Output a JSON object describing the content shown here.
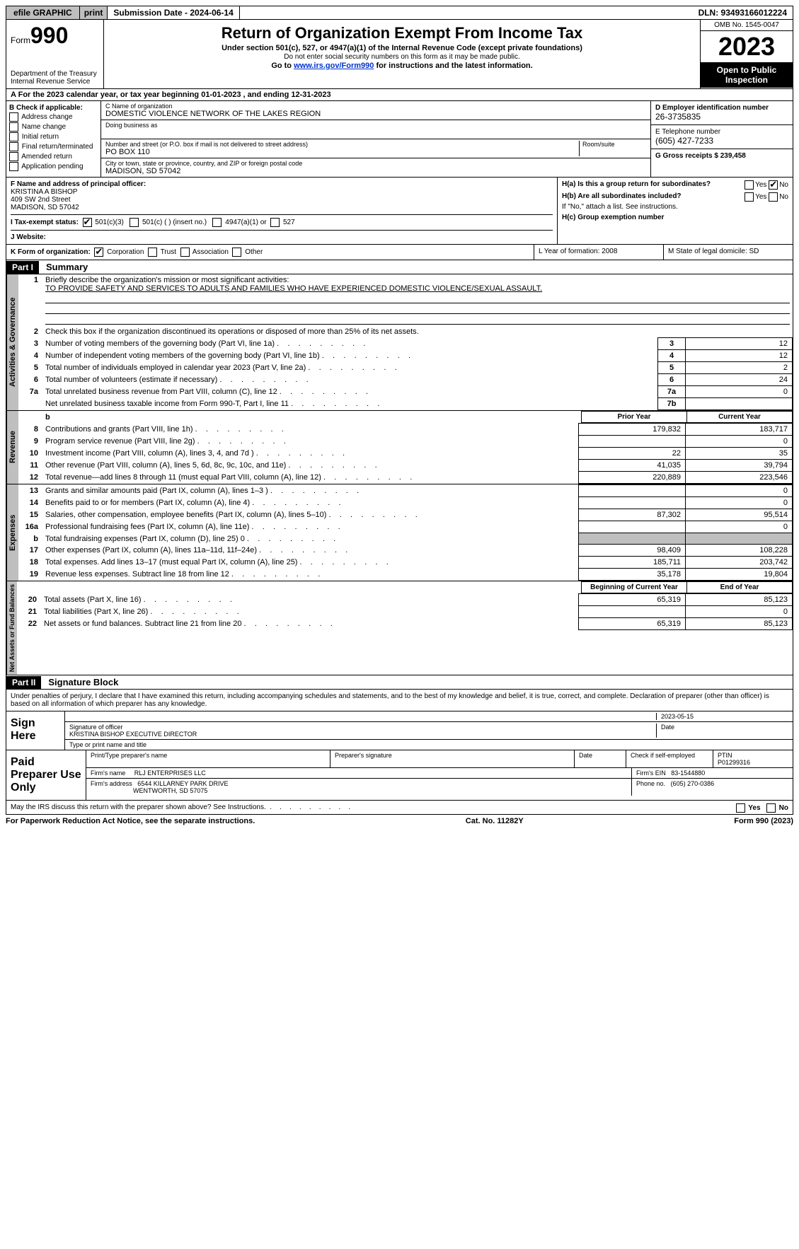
{
  "topbar": {
    "efile": "efile GRAPHIC",
    "print": "print",
    "subdate_label": "Submission Date - 2024-06-14",
    "dln": "DLN: 93493166012224"
  },
  "header": {
    "form_prefix": "Form",
    "form_num": "990",
    "dept": "Department of the Treasury\nInternal Revenue Service",
    "title": "Return of Organization Exempt From Income Tax",
    "sub1": "Under section 501(c), 527, or 4947(a)(1) of the Internal Revenue Code (except private foundations)",
    "sub2": "Do not enter social security numbers on this form as it may be made public.",
    "sub3_pre": "Go to ",
    "sub3_link": "www.irs.gov/Form990",
    "sub3_post": " for instructions and the latest information.",
    "omb": "OMB No. 1545-0047",
    "year": "2023",
    "open": "Open to Public Inspection"
  },
  "rowA": "For the 2023 calendar year, or tax year beginning 01-01-2023   , and ending 12-31-2023",
  "boxB": {
    "label": "B Check if applicable:",
    "items": [
      "Address change",
      "Name change",
      "Initial return",
      "Final return/terminated",
      "Amended return",
      "Application pending"
    ]
  },
  "boxC": {
    "name_label": "C Name of organization",
    "name": "DOMESTIC VIOLENCE NETWORK OF THE LAKES REGION",
    "dba_label": "Doing business as",
    "addr_label": "Number and street (or P.O. box if mail is not delivered to street address)",
    "room_label": "Room/suite",
    "addr": "PO BOX 110",
    "city_label": "City or town, state or province, country, and ZIP or foreign postal code",
    "city": "MADISON, SD  57042"
  },
  "boxD": {
    "label": "D Employer identification number",
    "val": "26-3735835"
  },
  "boxE": {
    "label": "E Telephone number",
    "val": "(605) 427-7233"
  },
  "boxG": {
    "label": "G Gross receipts $ 239,458"
  },
  "boxF": {
    "label": "F  Name and address of principal officer:",
    "l1": "KRISTINA A BISHOP",
    "l2": "409 SW 2nd Street",
    "l3": "MADISON, SD  57042"
  },
  "boxH": {
    "a": "H(a)  Is this a group return for subordinates?",
    "b": "H(b)  Are all subordinates included?",
    "bno": "If \"No,\" attach a list. See instructions.",
    "c": "H(c)  Group exemption number"
  },
  "rowI": {
    "label": "I   Tax-exempt status:",
    "o1": "501(c)(3)",
    "o2": "501(c) (  ) (insert no.)",
    "o3": "4947(a)(1) or",
    "o4": "527"
  },
  "rowJ": "J   Website:",
  "rowK": {
    "label": "K Form of organization:",
    "opts": [
      "Corporation",
      "Trust",
      "Association",
      "Other"
    ]
  },
  "rowL": "L Year of formation: 2008",
  "rowM": "M State of legal domicile: SD",
  "part1": {
    "label": "Part I",
    "title": "Summary"
  },
  "summary": {
    "l1": "Briefly describe the organization's mission or most significant activities:",
    "l1v": "TO PROVIDE SAFETY AND SERVICES TO ADULTS AND FAMILIES WHO HAVE EXPERIENCED DOMESTIC VIOLENCE/SEXUAL ASSAULT.",
    "l2": "Check this box      if the organization discontinued its operations or disposed of more than 25% of its net assets.",
    "ag": [
      {
        "n": "3",
        "t": "Number of voting members of the governing body (Part VI, line 1a)",
        "b": "3",
        "v": "12"
      },
      {
        "n": "4",
        "t": "Number of independent voting members of the governing body (Part VI, line 1b)",
        "b": "4",
        "v": "12"
      },
      {
        "n": "5",
        "t": "Total number of individuals employed in calendar year 2023 (Part V, line 2a)",
        "b": "5",
        "v": "2"
      },
      {
        "n": "6",
        "t": "Total number of volunteers (estimate if necessary)",
        "b": "6",
        "v": "24"
      },
      {
        "n": "7a",
        "t": "Total unrelated business revenue from Part VIII, column (C), line 12",
        "b": "7a",
        "v": "0"
      },
      {
        "n": "",
        "t": "Net unrelated business taxable income from Form 990-T, Part I, line 11",
        "b": "7b",
        "v": ""
      }
    ],
    "prior_hdr": "Prior Year",
    "curr_hdr": "Current Year",
    "rev": [
      {
        "n": "8",
        "t": "Contributions and grants (Part VIII, line 1h)",
        "p": "179,832",
        "c": "183,717"
      },
      {
        "n": "9",
        "t": "Program service revenue (Part VIII, line 2g)",
        "p": "",
        "c": "0"
      },
      {
        "n": "10",
        "t": "Investment income (Part VIII, column (A), lines 3, 4, and 7d )",
        "p": "22",
        "c": "35"
      },
      {
        "n": "11",
        "t": "Other revenue (Part VIII, column (A), lines 5, 6d, 8c, 9c, 10c, and 11e)",
        "p": "41,035",
        "c": "39,794"
      },
      {
        "n": "12",
        "t": "Total revenue—add lines 8 through 11 (must equal Part VIII, column (A), line 12)",
        "p": "220,889",
        "c": "223,546"
      }
    ],
    "exp": [
      {
        "n": "13",
        "t": "Grants and similar amounts paid (Part IX, column (A), lines 1–3 )",
        "p": "",
        "c": "0"
      },
      {
        "n": "14",
        "t": "Benefits paid to or for members (Part IX, column (A), line 4)",
        "p": "",
        "c": "0"
      },
      {
        "n": "15",
        "t": "Salaries, other compensation, employee benefits (Part IX, column (A), lines 5–10)",
        "p": "87,302",
        "c": "95,514"
      },
      {
        "n": "16a",
        "t": "Professional fundraising fees (Part IX, column (A), line 11e)",
        "p": "",
        "c": "0"
      },
      {
        "n": "b",
        "t": "Total fundraising expenses (Part IX, column (D), line 25) 0",
        "p": "shade",
        "c": "shade"
      },
      {
        "n": "17",
        "t": "Other expenses (Part IX, column (A), lines 11a–11d, 11f–24e)",
        "p": "98,409",
        "c": "108,228"
      },
      {
        "n": "18",
        "t": "Total expenses. Add lines 13–17 (must equal Part IX, column (A), line 25)",
        "p": "185,711",
        "c": "203,742"
      },
      {
        "n": "19",
        "t": "Revenue less expenses. Subtract line 18 from line 12",
        "p": "35,178",
        "c": "19,804"
      }
    ],
    "bcy_hdr": "Beginning of Current Year",
    "eoy_hdr": "End of Year",
    "net": [
      {
        "n": "20",
        "t": "Total assets (Part X, line 16)",
        "p": "65,319",
        "c": "85,123"
      },
      {
        "n": "21",
        "t": "Total liabilities (Part X, line 26)",
        "p": "",
        "c": "0"
      },
      {
        "n": "22",
        "t": "Net assets or fund balances. Subtract line 21 from line 20",
        "p": "65,319",
        "c": "85,123"
      }
    ]
  },
  "tabs": {
    "ag": "Activities & Governance",
    "rev": "Revenue",
    "exp": "Expenses",
    "net": "Net Assets or Fund Balances"
  },
  "part2": {
    "label": "Part II",
    "title": "Signature Block"
  },
  "sig": {
    "perjury": "Under penalties of perjury, I declare that I have examined this return, including accompanying schedules and statements, and to the best of my knowledge and belief, it is true, correct, and complete. Declaration of preparer (other than officer) is based on all information of which preparer has any knowledge.",
    "sign_here": "Sign Here",
    "date": "2023-05-15",
    "sig_officer": "Signature of officer",
    "officer": "KRISTINA BISHOP  EXECUTIVE DIRECTOR",
    "type_label": "Type or print name and title",
    "paid": "Paid Preparer Use Only",
    "prep_name_label": "Print/Type preparer's name",
    "prep_sig_label": "Preparer's signature",
    "date_label": "Date",
    "check_label": "Check       if self-employed",
    "ptin_label": "PTIN",
    "ptin": "P01299316",
    "firm_name_label": "Firm's name",
    "firm_name": "RLJ ENTERPRISES LLC",
    "firm_ein_label": "Firm's EIN",
    "firm_ein": "83-1544880",
    "firm_addr_label": "Firm's address",
    "firm_addr1": "6544 KILLARNEY PARK DRIVE",
    "firm_addr2": "WENTWORTH, SD  57075",
    "phone_label": "Phone no.",
    "phone": "(605) 270-0386",
    "discuss": "May the IRS discuss this return with the preparer shown above? See Instructions."
  },
  "footer": {
    "left": "For Paperwork Reduction Act Notice, see the separate instructions.",
    "mid": "Cat. No. 11282Y",
    "right": "Form 990 (2023)"
  },
  "yesno": {
    "yes": "Yes",
    "no": "No"
  }
}
